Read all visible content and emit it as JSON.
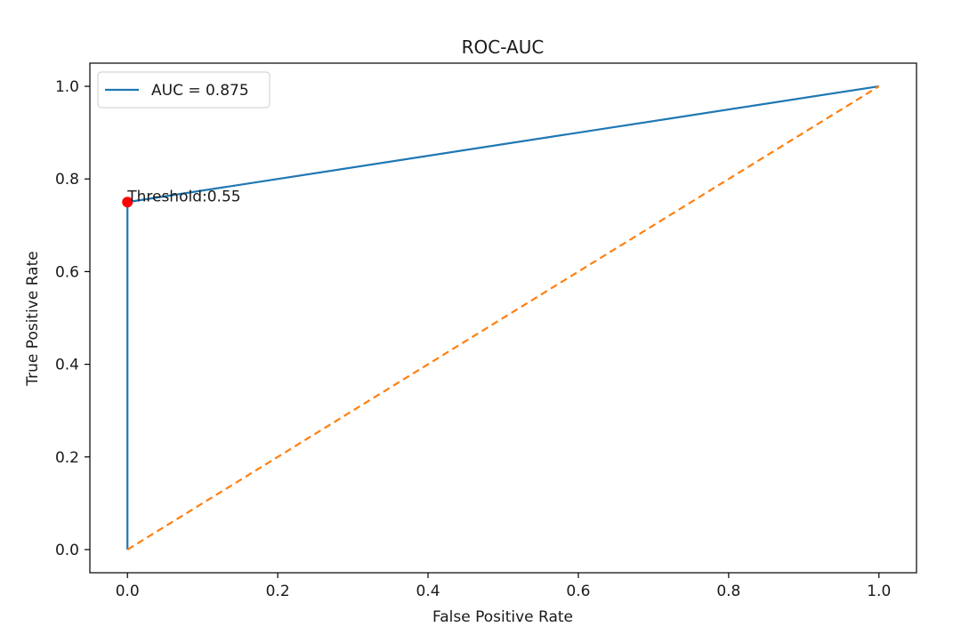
{
  "chart_data": {
    "type": "line",
    "title": "ROC-AUC",
    "xlabel": "False Positive Rate",
    "ylabel": "True Positive Rate",
    "xlim": [
      -0.05,
      1.05
    ],
    "ylim": [
      -0.05,
      1.05
    ],
    "xticks": [
      0.0,
      0.2,
      0.4,
      0.6,
      0.8,
      1.0
    ],
    "xtick_labels": [
      "0.0",
      "0.2",
      "0.4",
      "0.6",
      "0.8",
      "1.0"
    ],
    "yticks": [
      0.0,
      0.2,
      0.4,
      0.6,
      0.8,
      1.0
    ],
    "ytick_labels": [
      "0.0",
      "0.2",
      "0.4",
      "0.6",
      "0.8",
      "1.0"
    ],
    "grid": false,
    "legend_position": "top-left",
    "series": [
      {
        "name": "AUC = 0.875",
        "color": "#1f77b4",
        "style": "solid",
        "x": [
          0.0,
          0.0,
          1.0
        ],
        "y": [
          0.0,
          0.75,
          1.0
        ]
      },
      {
        "color": "#ff7f0e",
        "style": "dashed",
        "x": [
          0.0,
          1.0
        ],
        "y": [
          0.0,
          1.0
        ]
      }
    ],
    "points": [
      {
        "x": 0.0,
        "y": 0.75,
        "color": "#ff0000"
      }
    ],
    "annotations": [
      {
        "text": "Threshold:0.55",
        "x": 0.0,
        "y": 0.75
      }
    ]
  }
}
